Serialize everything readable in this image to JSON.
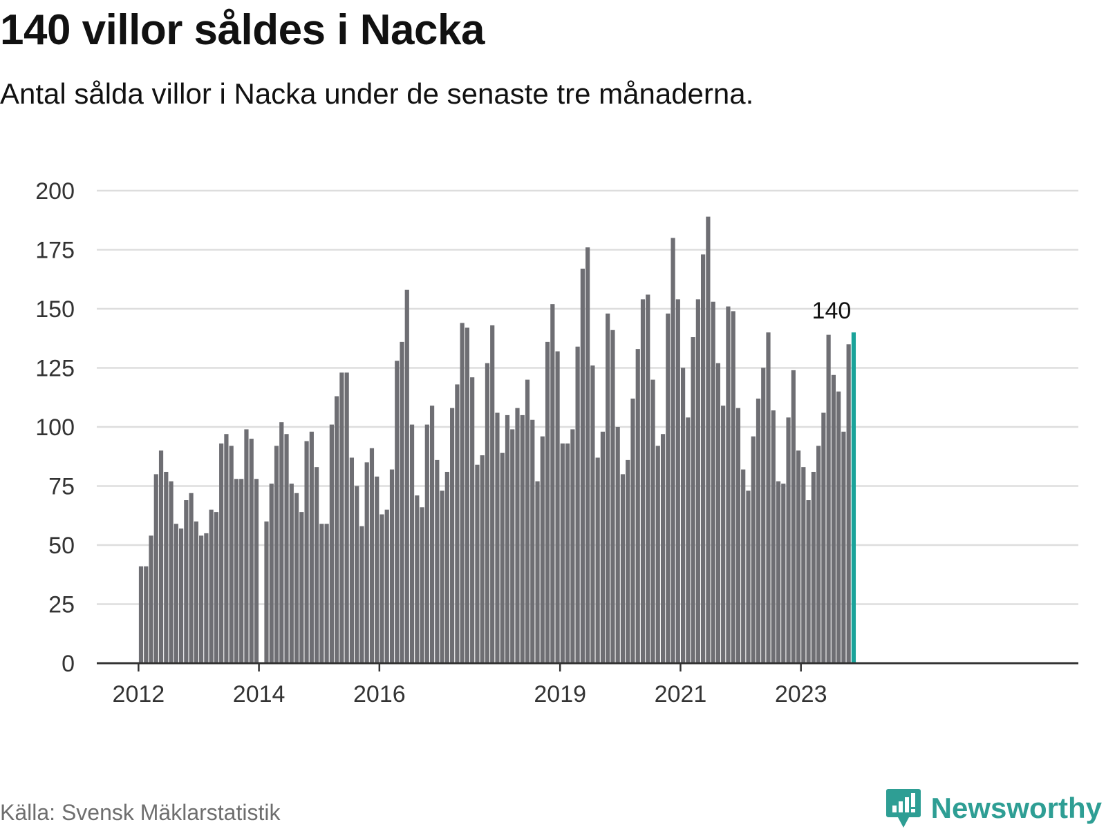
{
  "header": {
    "title": "140 villor såldes i Nacka",
    "subtitle": "Antal sålda villor i Nacka under de senaste tre månaderna."
  },
  "footer": {
    "source": "Källa: Svensk Mäklarstatistik",
    "brand": "Newsworthy",
    "brand_icon": "newsworthy-logo-icon"
  },
  "colors": {
    "bar": "#6e6e73",
    "highlight": "#1aa39a",
    "grid": "#dddddd",
    "axis": "#333333"
  },
  "chart_data": {
    "type": "bar",
    "title": "140 villor såldes i Nacka",
    "xlabel": "",
    "ylabel": "",
    "ylim": [
      0,
      200
    ],
    "yticks": [
      0,
      25,
      50,
      75,
      100,
      125,
      150,
      175,
      200
    ],
    "grid": true,
    "legend": "none",
    "start": "2012-01",
    "xticks": [
      {
        "label": "2012",
        "index": 0
      },
      {
        "label": "2014",
        "index": 24
      },
      {
        "label": "2016",
        "index": 48
      },
      {
        "label": "2019",
        "index": 84
      },
      {
        "label": "2021",
        "index": 108
      },
      {
        "label": "2023",
        "index": 132
      }
    ],
    "highlight": {
      "index": 142,
      "label": "140"
    },
    "values": [
      41,
      41,
      54,
      80,
      90,
      81,
      77,
      59,
      57,
      69,
      72,
      60,
      54,
      55,
      65,
      64,
      93,
      97,
      92,
      78,
      78,
      99,
      95,
      78,
      null,
      60,
      76,
      92,
      102,
      97,
      76,
      72,
      64,
      94,
      98,
      83,
      59,
      59,
      101,
      113,
      123,
      123,
      87,
      75,
      58,
      85,
      91,
      79,
      63,
      65,
      82,
      128,
      136,
      158,
      101,
      71,
      66,
      101,
      109,
      86,
      73,
      81,
      108,
      118,
      144,
      142,
      121,
      84,
      88,
      127,
      143,
      106,
      89,
      105,
      99,
      108,
      105,
      120,
      103,
      77,
      96,
      136,
      152,
      132,
      93,
      93,
      99,
      134,
      167,
      176,
      126,
      87,
      98,
      148,
      141,
      100,
      80,
      86,
      112,
      133,
      154,
      156,
      120,
      92,
      97,
      148,
      180,
      154,
      125,
      104,
      138,
      154,
      173,
      189,
      153,
      127,
      109,
      151,
      149,
      108,
      82,
      73,
      96,
      112,
      125,
      140,
      107,
      77,
      76,
      104,
      124,
      90,
      83,
      69,
      81,
      92,
      106,
      139,
      122,
      115,
      98,
      135,
      140
    ]
  }
}
